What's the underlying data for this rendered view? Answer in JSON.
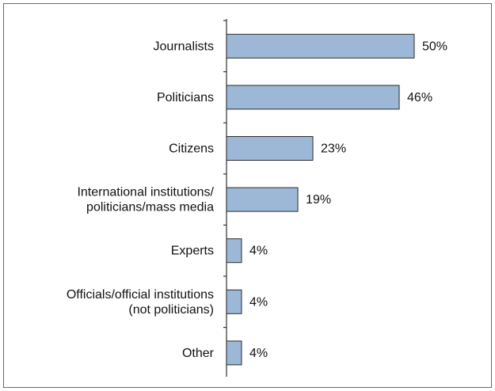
{
  "chart_data": {
    "type": "bar",
    "orientation": "horizontal",
    "categories": [
      [
        "Journalists"
      ],
      [
        "Politicians"
      ],
      [
        "Citizens"
      ],
      [
        "International institutions/",
        "politicians/mass media"
      ],
      [
        "Experts"
      ],
      [
        "Officials/official institutions",
        "(not politicians)"
      ],
      [
        "Other"
      ]
    ],
    "values": [
      50,
      46,
      23,
      19,
      4,
      4,
      4
    ],
    "value_labels": [
      "50%",
      "46%",
      "23%",
      "19%",
      "4%",
      "4%",
      "4%"
    ],
    "xlim": [
      0,
      50
    ],
    "bar_color": "#9db8d6",
    "frame_color": "#4a6aa5",
    "grid": false,
    "legend": "none"
  }
}
